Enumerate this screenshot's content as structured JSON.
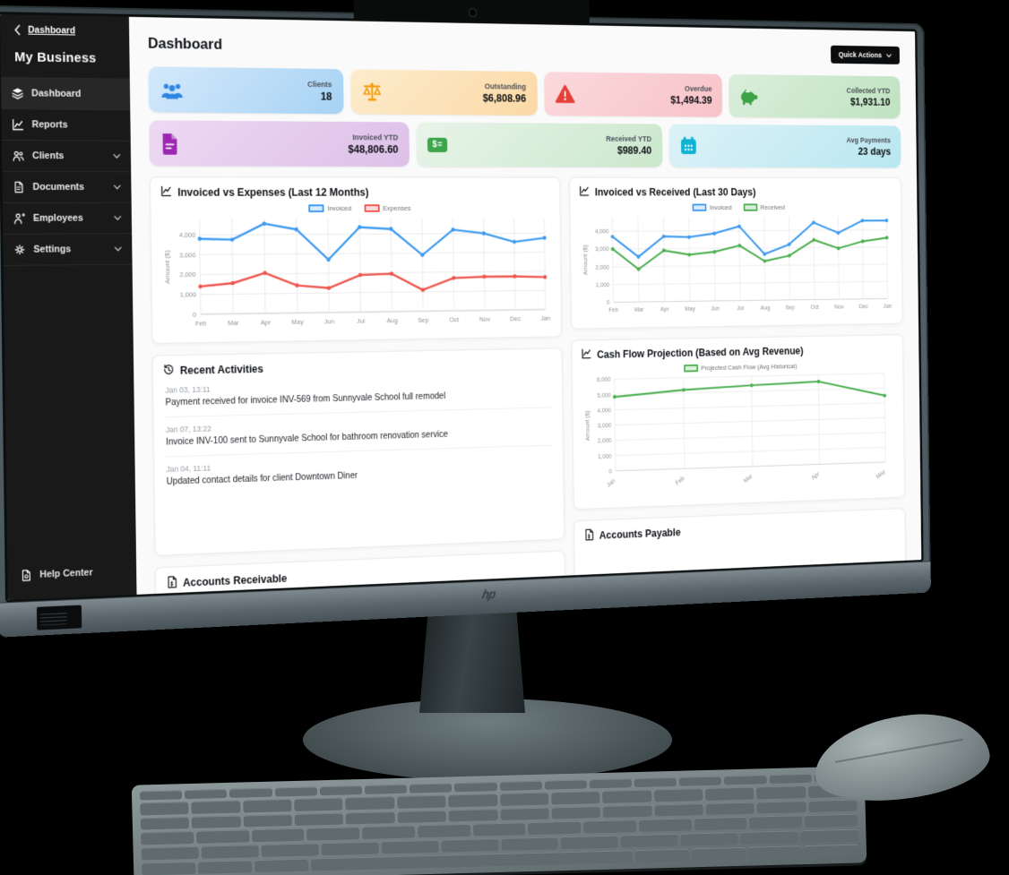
{
  "breadcrumb": {
    "label": "Dashboard"
  },
  "sidebar": {
    "business_name": "My Business",
    "items": [
      {
        "label": "Dashboard"
      },
      {
        "label": "Reports"
      },
      {
        "label": "Clients"
      },
      {
        "label": "Documents"
      },
      {
        "label": "Employees"
      },
      {
        "label": "Settings"
      }
    ],
    "help": {
      "label": "Help Center"
    }
  },
  "header": {
    "title": "Dashboard",
    "quick_actions_label": "Quick Actions"
  },
  "stat_cards": [
    {
      "label": "Clients",
      "value": "18",
      "icon": "clients-icon",
      "accent": "#2d86e2",
      "bg_from": "#d4e9fb",
      "bg_to": "#a6d2f4"
    },
    {
      "label": "Outstanding",
      "value": "$6,808.96",
      "icon": "scales-icon",
      "accent": "#f59b0b",
      "bg_from": "#fdeccd",
      "bg_to": "#fbd9a6"
    },
    {
      "label": "Overdue",
      "value": "$1,494.39",
      "icon": "warning-icon",
      "accent": "#e6403a",
      "bg_from": "#fbd9dc",
      "bg_to": "#f7c3c8"
    },
    {
      "label": "Collected YTD",
      "value": "$1,931.10",
      "icon": "piggy-bank-icon",
      "accent": "#3ca245",
      "bg_from": "#daeedb",
      "bg_to": "#bfe3c1"
    },
    {
      "label": "Invoiced YTD",
      "value": "$48,806.60",
      "icon": "invoice-file-icon",
      "accent": "#9c27b0",
      "bg_from": "#edd9f3",
      "bg_to": "#ddc0e8"
    },
    {
      "label": "Received YTD",
      "value": "$989.40",
      "icon": "money-check-icon",
      "icon_glyph": "$=",
      "accent": "#3da54c",
      "bg_from": "#e8f4e8",
      "bg_to": "#cbe7cd"
    },
    {
      "label": "Avg Payments",
      "value": "23 days",
      "icon": "calendar-icon",
      "accent": "#0fb3d4",
      "bg_from": "#dcf2f7",
      "bg_to": "#b9e7f0"
    }
  ],
  "activities": {
    "title": "Recent Activities",
    "items": [
      {
        "date": "Jan 03, 13:11",
        "text": "Payment received for invoice INV-569 from Sunnyvale School full remodel"
      },
      {
        "date": "Jan 07, 13:22",
        "text": "Invoice INV-100 sent to Sunnyvale School for bathroom renovation service"
      },
      {
        "date": "Jan 04, 11:11",
        "text": "Updated contact details for client Downtown Diner"
      }
    ]
  },
  "accounts": {
    "receivable_title": "Accounts Receivable",
    "payable_title": "Accounts Payable"
  },
  "hardware": {
    "brand": "hp"
  },
  "chart_data": [
    {
      "type": "line",
      "title": "Invoiced vs Expenses (Last 12 Months)",
      "categories": [
        "Feb",
        "Mar",
        "Apr",
        "May",
        "Jun",
        "Jul",
        "Aug",
        "Sep",
        "Oct",
        "Nov",
        "Dec",
        "Jan"
      ],
      "series": [
        {
          "name": "Invoiced",
          "color": "#3E9BF0",
          "values": [
            3800,
            3750,
            4550,
            4250,
            2700,
            4350,
            4250,
            2900,
            4200,
            4000,
            3550,
            3750
          ]
        },
        {
          "name": "Expenses",
          "color": "#F0554D",
          "values": [
            1400,
            1550,
            2050,
            1400,
            1250,
            1900,
            1950,
            1100,
            1700,
            1750,
            1750,
            1700
          ]
        }
      ],
      "xlabel": "",
      "ylabel": "Amount ($)",
      "ylim": [
        0,
        4800
      ],
      "ytick_step": 1000,
      "ytick_max": 4000,
      "grid": true,
      "legend_position": "top"
    },
    {
      "type": "line",
      "title": "Invoiced vs Received (Last 30 Days)",
      "categories": [
        "Feb",
        "Mar",
        "Apr",
        "May",
        "Jun",
        "Jul",
        "Aug",
        "Sep",
        "Oct",
        "Nov",
        "Dec",
        "Jan"
      ],
      "series": [
        {
          "name": "Invoiced",
          "color": "#3E9BF0",
          "values": [
            3700,
            2550,
            3700,
            3650,
            3850,
            4250,
            2650,
            3200,
            4450,
            3850,
            4550,
            4550
          ]
        },
        {
          "name": "Received",
          "color": "#4CAF50",
          "values": [
            3000,
            1850,
            2900,
            2650,
            2800,
            3150,
            2250,
            2550,
            3450,
            2950,
            3350,
            3550
          ]
        }
      ],
      "xlabel": "",
      "ylabel": "Amount ($)",
      "ylim": [
        0,
        4800
      ],
      "ytick_step": 1000,
      "ytick_max": 4000,
      "grid": true,
      "legend_position": "top"
    },
    {
      "type": "line",
      "title": "Cash Flow Projection (Based on Avg Revenue)",
      "categories": [
        "Jan",
        "Feb",
        "Mar",
        "Apr",
        "May"
      ],
      "series": [
        {
          "name": "Projected Cash Flow (Avg Historical)",
          "color": "#4CAF50",
          "values": [
            4850,
            5200,
            5400,
            5550,
            4500
          ]
        }
      ],
      "xlabel": "",
      "ylabel": "Amount ($)",
      "ylim": [
        0,
        6000
      ],
      "ytick_step": 1000,
      "ytick_max": 6000,
      "grid": true,
      "legend_position": "top",
      "x_label_rotation": -35
    }
  ]
}
